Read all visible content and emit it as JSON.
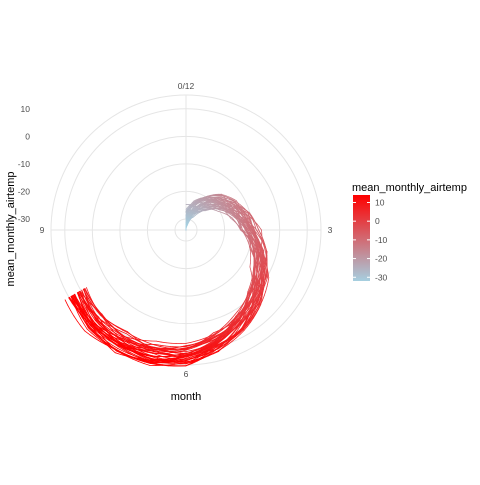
{
  "chart_data": {
    "type": "line",
    "coord": "polar",
    "title": "",
    "xlabel": "month",
    "ylabel": "mean_monthly_airtemp",
    "xlim": [
      0,
      12
    ],
    "ylim": [
      -34,
      15
    ],
    "x_tick_labels": [
      "0/12",
      "3",
      "6",
      "9"
    ],
    "y_tick_labels": [
      "10",
      "0",
      "-10",
      "-20",
      "-30"
    ],
    "y_ticks": [
      10,
      0,
      -10,
      -20,
      -30
    ],
    "grid": true,
    "legend": {
      "title": "mean_monthly_airtemp",
      "position": "right",
      "labels": [
        "10",
        "0",
        "-10",
        "-20",
        "-30"
      ],
      "values": [
        10,
        0,
        -10,
        -20,
        -30
      ],
      "range": [
        -32,
        14
      ],
      "low_color": "#a6cfe0",
      "high_color": "#ff0000"
    },
    "series_count": 40,
    "series_template": {
      "month": [
        0.0,
        0.5,
        1.0,
        1.5,
        2.0,
        2.5,
        3.0,
        3.5,
        4.0,
        4.5,
        5.0,
        5.5,
        6.0,
        6.5,
        7.0,
        7.5,
        8.0
      ],
      "mean_monthly_airtemp": [
        -31,
        -28,
        -24,
        -20,
        -17,
        -14,
        -11,
        -7,
        -3,
        1,
        5,
        9,
        12,
        13.5,
        14,
        13.5,
        12
      ]
    }
  }
}
